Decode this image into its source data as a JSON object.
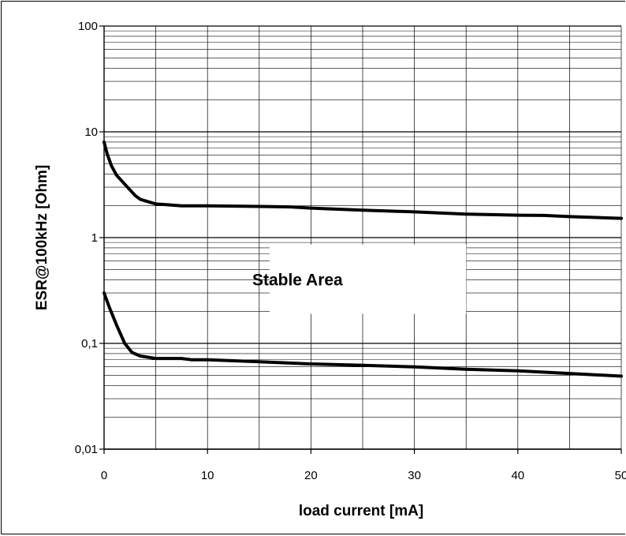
{
  "chart_data": {
    "type": "line",
    "xlabel": "load current [mA]",
    "ylabel": "ESR@100kHz [Ohm]",
    "xlim": [
      0,
      50
    ],
    "ylim": [
      0.01,
      100
    ],
    "y_scale": "log",
    "grid": true,
    "x_ticks": [
      "0",
      "10",
      "20",
      "30",
      "40",
      "50"
    ],
    "y_ticks": [
      "0,01",
      "0,1",
      "1",
      "10",
      "100"
    ],
    "annotation": "Stable Area",
    "series": [
      {
        "points": [
          [
            0,
            8
          ],
          [
            0.3,
            6.2
          ],
          [
            0.7,
            4.8
          ],
          [
            1.2,
            3.9
          ],
          [
            2,
            3.2
          ],
          [
            3,
            2.5
          ],
          [
            3.5,
            2.3
          ],
          [
            5,
            2.08
          ],
          [
            6,
            2.05
          ],
          [
            7.5,
            2.0
          ],
          [
            10,
            2.0
          ],
          [
            15,
            1.97
          ],
          [
            18,
            1.95
          ],
          [
            20,
            1.9
          ],
          [
            25,
            1.82
          ],
          [
            30,
            1.75
          ],
          [
            35,
            1.67
          ],
          [
            40,
            1.63
          ],
          [
            42.5,
            1.62
          ],
          [
            45,
            1.58
          ],
          [
            50,
            1.52
          ]
        ]
      },
      {
        "points": [
          [
            0,
            0.3
          ],
          [
            0.5,
            0.22
          ],
          [
            1.2,
            0.15
          ],
          [
            2,
            0.1
          ],
          [
            2.7,
            0.082
          ],
          [
            3.5,
            0.076
          ],
          [
            5,
            0.072
          ],
          [
            7.5,
            0.072
          ],
          [
            8.5,
            0.07
          ],
          [
            10,
            0.07
          ],
          [
            15,
            0.067
          ],
          [
            20,
            0.064
          ],
          [
            25,
            0.062
          ],
          [
            30,
            0.06
          ],
          [
            35,
            0.057
          ],
          [
            40,
            0.055
          ],
          [
            45,
            0.052
          ],
          [
            50,
            0.049
          ]
        ]
      }
    ]
  }
}
